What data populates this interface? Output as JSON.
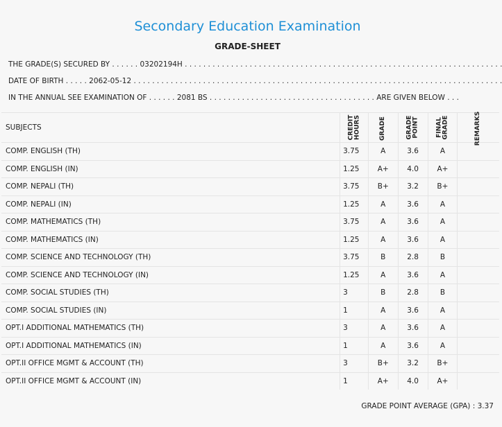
{
  "header": {
    "title": "Secondary Education Examination",
    "subtitle": "GRADE-SHEET"
  },
  "info": {
    "secured_by": "THE GRADE(S) SECURED BY . . . . . . 03202194H . . . . . . . . . . . . . . . . . . . . . . . . . . . . . . . . . . . . . . . . . . . . . . . . . . . . . . . . . . . . . . . . . . . . . . .",
    "dob": "DATE OF BIRTH . . . . . 2062-05-12 . . . . . . . . . . . . . . . . . . . . . . . . . . . . . . . . . . . . . . . . . . . . . . . . . . . . . . . . . . . . . . . . . . . . . . . . . . . . . . . . .",
    "exam": "IN THE ANNUAL SEE EXAMINATION OF . . . . . . 2081 BS . . . . . . . . . . . . . . . . . . . . . . . . . . . . . . . . . . . . ARE GIVEN BELOW . . ."
  },
  "table": {
    "headers": {
      "subjects": "SUBJECTS",
      "credit_hours_1": "CREDIT",
      "credit_hours_2": "HOURS",
      "grade": "GRADE",
      "grade_point_1": "GRADE",
      "grade_point_2": "POINT",
      "final_grade_1": "FINAL",
      "final_grade_2": "GRADE",
      "remarks": "REMARKS"
    },
    "rows": [
      {
        "subject": "COMP. ENGLISH (TH)",
        "credit": "3.75",
        "grade": "A",
        "point": "3.6",
        "final": "A",
        "remarks": ""
      },
      {
        "subject": "COMP. ENGLISH (IN)",
        "credit": "1.25",
        "grade": "A+",
        "point": "4.0",
        "final": "A+",
        "remarks": ""
      },
      {
        "subject": "COMP. NEPALI (TH)",
        "credit": "3.75",
        "grade": "B+",
        "point": "3.2",
        "final": "B+",
        "remarks": ""
      },
      {
        "subject": "COMP. NEPALI (IN)",
        "credit": "1.25",
        "grade": "A",
        "point": "3.6",
        "final": "A",
        "remarks": ""
      },
      {
        "subject": "COMP. MATHEMATICS (TH)",
        "credit": "3.75",
        "grade": "A",
        "point": "3.6",
        "final": "A",
        "remarks": ""
      },
      {
        "subject": "COMP. MATHEMATICS (IN)",
        "credit": "1.25",
        "grade": "A",
        "point": "3.6",
        "final": "A",
        "remarks": ""
      },
      {
        "subject": "COMP. SCIENCE AND TECHNOLOGY (TH)",
        "credit": "3.75",
        "grade": "B",
        "point": "2.8",
        "final": "B",
        "remarks": ""
      },
      {
        "subject": "COMP. SCIENCE AND TECHNOLOGY (IN)",
        "credit": "1.25",
        "grade": "A",
        "point": "3.6",
        "final": "A",
        "remarks": ""
      },
      {
        "subject": "COMP. SOCIAL STUDIES (TH)",
        "credit": "3",
        "grade": "B",
        "point": "2.8",
        "final": "B",
        "remarks": ""
      },
      {
        "subject": "COMP. SOCIAL STUDIES (IN)",
        "credit": "1",
        "grade": "A",
        "point": "3.6",
        "final": "A",
        "remarks": ""
      },
      {
        "subject": "OPT.I ADDITIONAL MATHEMATICS (TH)",
        "credit": "3",
        "grade": "A",
        "point": "3.6",
        "final": "A",
        "remarks": ""
      },
      {
        "subject": "OPT.I ADDITIONAL MATHEMATICS (IN)",
        "credit": "1",
        "grade": "A",
        "point": "3.6",
        "final": "A",
        "remarks": ""
      },
      {
        "subject": "OPT.II OFFICE MGMT & ACCOUNT (TH)",
        "credit": "3",
        "grade": "B+",
        "point": "3.2",
        "final": "B+",
        "remarks": ""
      },
      {
        "subject": "OPT.II OFFICE MGMT & ACCOUNT (IN)",
        "credit": "1",
        "grade": "A+",
        "point": "4.0",
        "final": "A+",
        "remarks": ""
      }
    ]
  },
  "gpa": {
    "label": "GRADE POINT AVERAGE (GPA) : 3.37"
  },
  "colors": {
    "title": "#1e8fd6",
    "background": "#f7f7f7"
  }
}
